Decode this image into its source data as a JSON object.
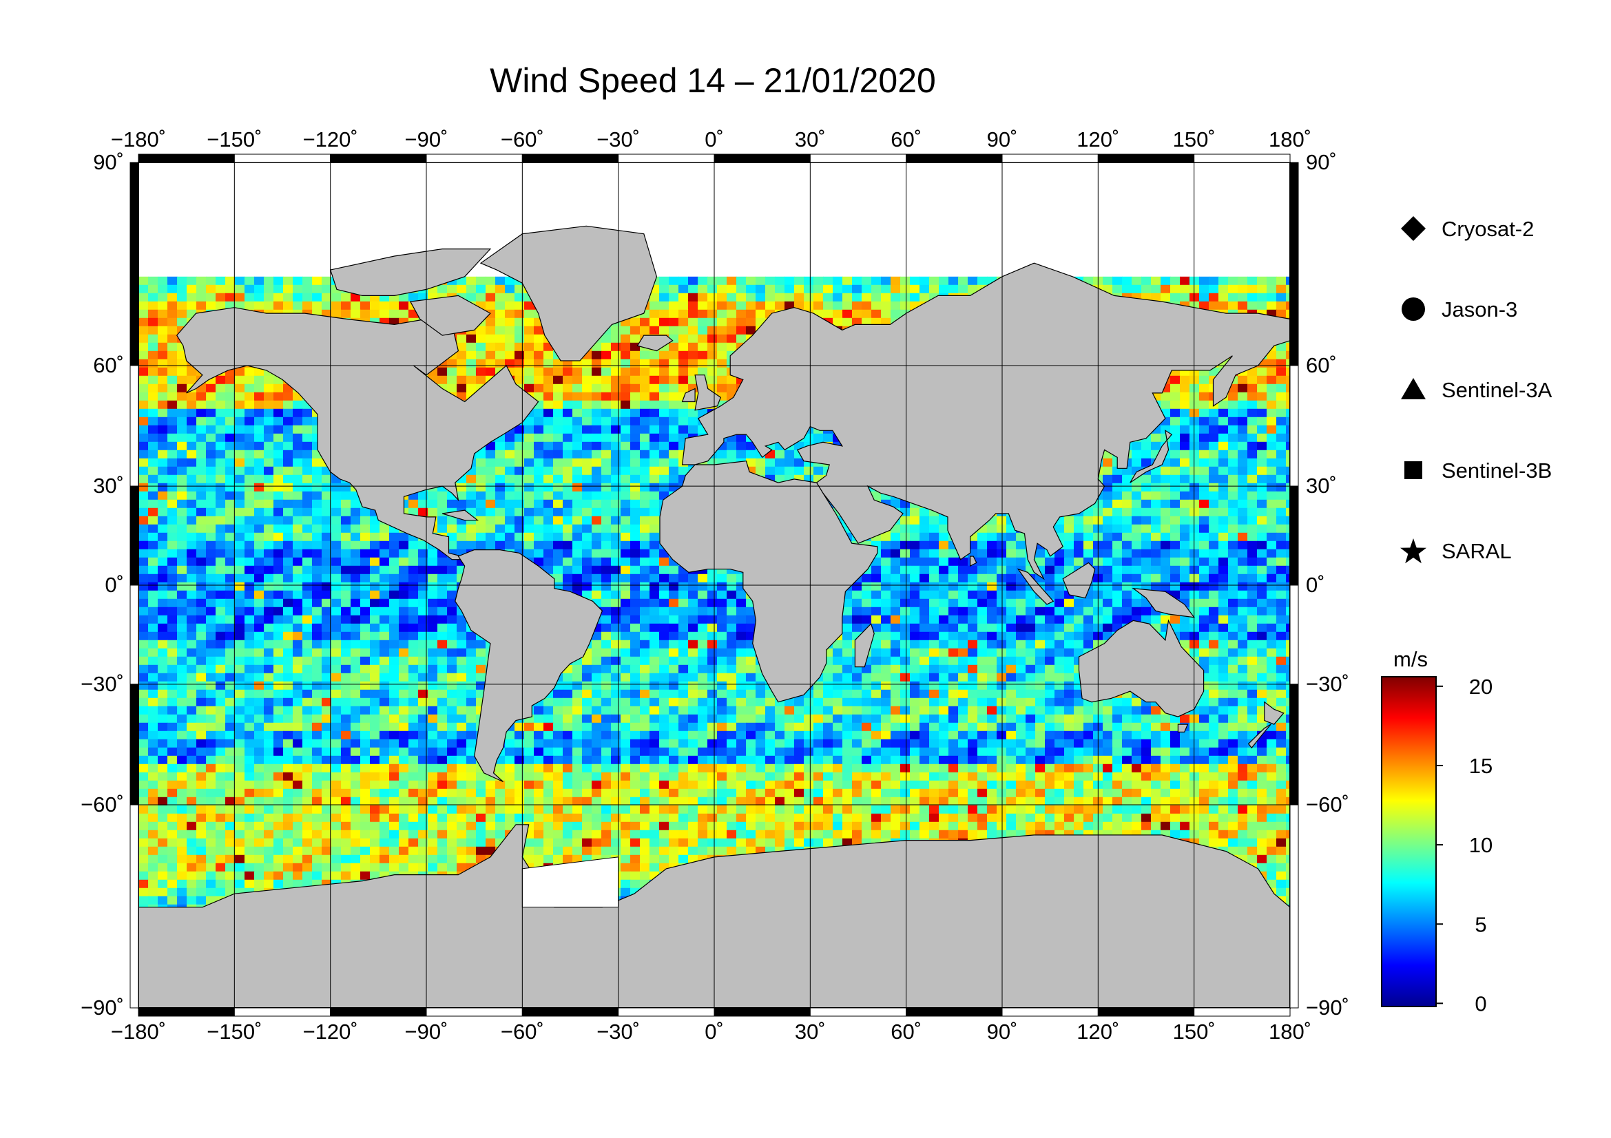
{
  "title": "Wind Speed 14 – 21/01/2020",
  "map": {
    "lon_ticks": [
      "−180˚",
      "−150˚",
      "−120˚",
      "−90˚",
      "−60˚",
      "−30˚",
      "0˚",
      "30˚",
      "60˚",
      "90˚",
      "120˚",
      "150˚",
      "180˚"
    ],
    "lon_values": [
      -180,
      -150,
      -120,
      -90,
      -60,
      -30,
      0,
      30,
      60,
      90,
      120,
      150,
      180
    ],
    "lat_ticks_left": [
      "90˚",
      "60˚",
      "30˚",
      "0˚",
      "−30˚",
      "−60˚",
      "−90˚"
    ],
    "lat_ticks_right": [
      "90˚",
      "60˚",
      "30˚",
      "0˚",
      "−30˚",
      "−60˚",
      "−90˚"
    ],
    "lat_values": [
      90,
      60,
      30,
      0,
      -30,
      -60,
      -90
    ],
    "ocean_color": "#ffffff",
    "land_color": "#bebebe",
    "grid": true
  },
  "legend": {
    "items": [
      {
        "label": "Cryosat-2",
        "symbol": "diamond"
      },
      {
        "label": "Jason-3",
        "symbol": "circle"
      },
      {
        "label": "Sentinel-3A",
        "symbol": "triangle"
      },
      {
        "label": "Sentinel-3B",
        "symbol": "square"
      },
      {
        "label": "SARAL",
        "symbol": "star"
      }
    ]
  },
  "colorbar": {
    "unit": "m/s",
    "min": 0,
    "max": 20,
    "ticks": [
      {
        "value": 20,
        "label": "20"
      },
      {
        "value": 15,
        "label": "15"
      },
      {
        "value": 10,
        "label": "10"
      },
      {
        "value": 5,
        "label": "5"
      },
      {
        "value": 0,
        "label": "0"
      }
    ],
    "colors": [
      "#00008f",
      "#0000ff",
      "#0080ff",
      "#00ffff",
      "#80ff80",
      "#ffff00",
      "#ff8000",
      "#ff0000",
      "#800000"
    ]
  }
}
